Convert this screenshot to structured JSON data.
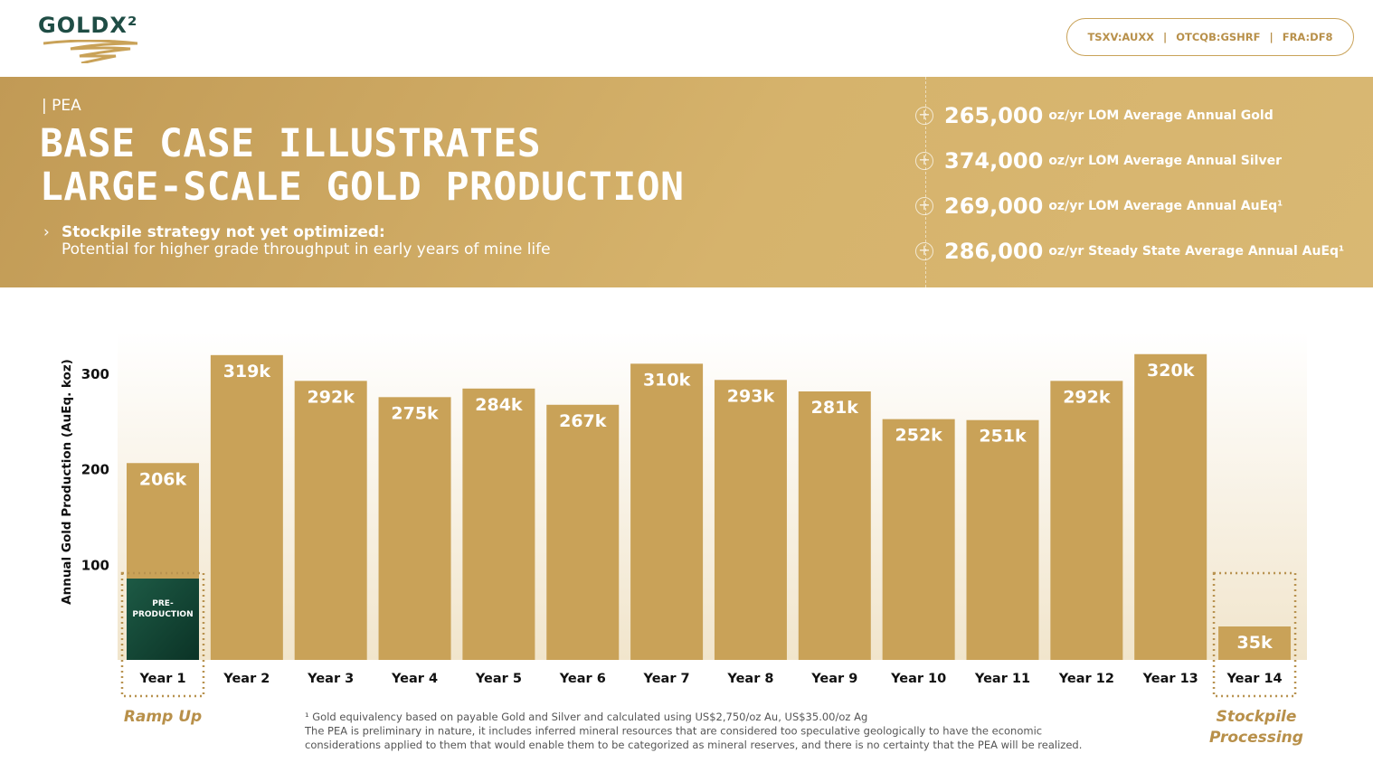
{
  "header": {
    "logo": "GOLDX²",
    "tickers": [
      "TSXV:AUXX",
      "OTCQB:GSHRF",
      "FRA:DF8"
    ]
  },
  "banner": {
    "kicker": "PEA",
    "title_lines": [
      "BASE CASE ILLUSTRATES",
      "LARGE-SCALE GOLD PRODUCTION"
    ],
    "bullet_heading": "Stockpile strategy not yet optimized:",
    "bullet_text": "Potential for higher grade throughput in early years of mine life",
    "stats": [
      {
        "value": "265,000",
        "text": "oz/yr LOM Average Annual Gold"
      },
      {
        "value": "374,000",
        "text": "oz/yr LOM Average Annual Silver"
      },
      {
        "value": "269,000",
        "text": "oz/yr LOM Average Annual AuEq¹"
      },
      {
        "value": "286,000",
        "text": "oz/yr Steady State Average Annual AuEq¹"
      }
    ]
  },
  "chart_data": {
    "type": "bar",
    "y_label": "Annual Gold Production (AuEq. koz)",
    "categories": [
      "Year 1",
      "Year 2",
      "Year 3",
      "Year 4",
      "Year 5",
      "Year 6",
      "Year 7",
      "Year 8",
      "Year 9",
      "Year 10",
      "Year 11",
      "Year 12",
      "Year 13",
      "Year 14"
    ],
    "values": [
      206,
      319,
      292,
      275,
      284,
      267,
      310,
      293,
      281,
      252,
      251,
      292,
      320,
      35
    ],
    "value_labels": [
      "206k",
      "319k",
      "292k",
      "275k",
      "284k",
      "267k",
      "310k",
      "293k",
      "281k",
      "252k",
      "251k",
      "292k",
      "320k",
      "35k"
    ],
    "color": "#c9a258",
    "ylim": [
      0,
      340
    ],
    "yticks": [
      100,
      200,
      300
    ],
    "grid": false,
    "annotations": {
      "pre_production": "PRE-PRODUCTION",
      "ramp_up": "Ramp Up",
      "stockpile": "Stockpile Processing"
    },
    "footnotes": [
      "¹ Gold equivalency based on payable Gold and Silver and calculated using US$2,750/oz Au, US$35.00/oz Ag",
      "The PEA is preliminary in nature, it includes inferred mineral resources that are considered too speculative geologically to have the economic",
      "considerations applied to them that would enable them to be categorized as mineral reserves, and there is no certainty that the PEA will be realized."
    ]
  }
}
